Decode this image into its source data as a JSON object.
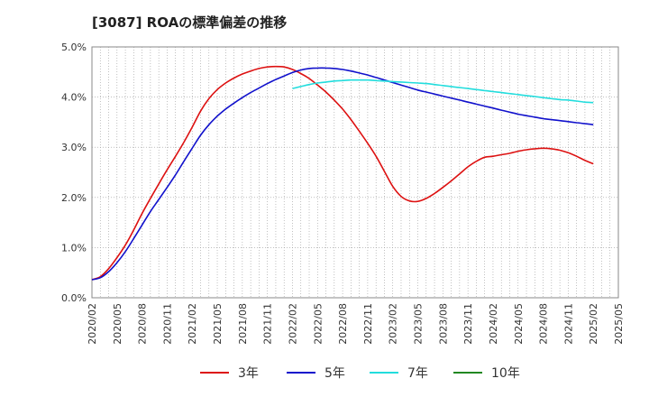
{
  "chart_data": {
    "type": "line",
    "title": "[3087]  ROAの標準偏差の推移",
    "xlabel": "",
    "ylabel": "",
    "ylim": [
      0,
      5
    ],
    "y_ticks": [
      "0.0%",
      "1.0%",
      "2.0%",
      "3.0%",
      "4.0%",
      "5.0%"
    ],
    "x_ticks": [
      "2020/02",
      "2020/05",
      "2020/08",
      "2020/11",
      "2021/02",
      "2021/05",
      "2021/08",
      "2021/11",
      "2022/02",
      "2022/05",
      "2022/08",
      "2022/11",
      "2023/02",
      "2023/05",
      "2023/08",
      "2023/11",
      "2024/02",
      "2024/05",
      "2024/08",
      "2024/11",
      "2025/02",
      "2025/05"
    ],
    "grid": true,
    "legend_position": "bottom",
    "series": [
      {
        "name": "3年",
        "color": "#dd1111",
        "points": [
          [
            "2020/02",
            0.36
          ],
          [
            "2020/03",
            0.42
          ],
          [
            "2020/04",
            0.58
          ],
          [
            "2020/05",
            0.8
          ],
          [
            "2020/06",
            1.05
          ],
          [
            "2020/07",
            1.35
          ],
          [
            "2020/08",
            1.68
          ],
          [
            "2020/09",
            1.98
          ],
          [
            "2020/10",
            2.27
          ],
          [
            "2020/11",
            2.55
          ],
          [
            "2020/12",
            2.82
          ],
          [
            "2021/01",
            3.1
          ],
          [
            "2021/02",
            3.4
          ],
          [
            "2021/03",
            3.72
          ],
          [
            "2021/04",
            3.97
          ],
          [
            "2021/05",
            4.15
          ],
          [
            "2021/06",
            4.28
          ],
          [
            "2021/07",
            4.38
          ],
          [
            "2021/08",
            4.46
          ],
          [
            "2021/09",
            4.52
          ],
          [
            "2021/10",
            4.57
          ],
          [
            "2021/11",
            4.6
          ],
          [
            "2021/12",
            4.61
          ],
          [
            "2022/01",
            4.6
          ],
          [
            "2022/02",
            4.55
          ],
          [
            "2022/03",
            4.47
          ],
          [
            "2022/04",
            4.37
          ],
          [
            "2022/05",
            4.24
          ],
          [
            "2022/06",
            4.1
          ],
          [
            "2022/07",
            3.94
          ],
          [
            "2022/08",
            3.76
          ],
          [
            "2022/09",
            3.55
          ],
          [
            "2022/10",
            3.32
          ],
          [
            "2022/11",
            3.08
          ],
          [
            "2022/12",
            2.82
          ],
          [
            "2023/01",
            2.52
          ],
          [
            "2023/02",
            2.22
          ],
          [
            "2023/03",
            2.02
          ],
          [
            "2023/04",
            1.93
          ],
          [
            "2023/05",
            1.92
          ],
          [
            "2023/06",
            1.98
          ],
          [
            "2023/07",
            2.08
          ],
          [
            "2023/08",
            2.2
          ],
          [
            "2023/09",
            2.33
          ],
          [
            "2023/10",
            2.47
          ],
          [
            "2023/11",
            2.61
          ],
          [
            "2023/12",
            2.72
          ],
          [
            "2024/01",
            2.8
          ],
          [
            "2024/02",
            2.82
          ],
          [
            "2024/03",
            2.85
          ],
          [
            "2024/04",
            2.88
          ],
          [
            "2024/05",
            2.92
          ],
          [
            "2024/06",
            2.95
          ],
          [
            "2024/07",
            2.97
          ],
          [
            "2024/08",
            2.98
          ],
          [
            "2024/09",
            2.97
          ],
          [
            "2024/10",
            2.94
          ],
          [
            "2024/11",
            2.89
          ],
          [
            "2024/12",
            2.82
          ],
          [
            "2025/01",
            2.74
          ],
          [
            "2025/02",
            2.67
          ]
        ]
      },
      {
        "name": "5年",
        "color": "#1111cc",
        "points": [
          [
            "2020/02",
            0.36
          ],
          [
            "2020/03",
            0.4
          ],
          [
            "2020/04",
            0.52
          ],
          [
            "2020/05",
            0.7
          ],
          [
            "2020/06",
            0.92
          ],
          [
            "2020/07",
            1.18
          ],
          [
            "2020/08",
            1.45
          ],
          [
            "2020/09",
            1.72
          ],
          [
            "2020/10",
            1.96
          ],
          [
            "2020/11",
            2.2
          ],
          [
            "2020/12",
            2.45
          ],
          [
            "2021/01",
            2.72
          ],
          [
            "2021/02",
            2.98
          ],
          [
            "2021/03",
            3.24
          ],
          [
            "2021/04",
            3.45
          ],
          [
            "2021/05",
            3.62
          ],
          [
            "2021/06",
            3.76
          ],
          [
            "2021/07",
            3.88
          ],
          [
            "2021/08",
            3.99
          ],
          [
            "2021/09",
            4.09
          ],
          [
            "2021/10",
            4.18
          ],
          [
            "2021/11",
            4.27
          ],
          [
            "2021/12",
            4.35
          ],
          [
            "2022/01",
            4.42
          ],
          [
            "2022/02",
            4.49
          ],
          [
            "2022/03",
            4.54
          ],
          [
            "2022/04",
            4.57
          ],
          [
            "2022/05",
            4.58
          ],
          [
            "2022/06",
            4.58
          ],
          [
            "2022/07",
            4.57
          ],
          [
            "2022/08",
            4.55
          ],
          [
            "2022/09",
            4.52
          ],
          [
            "2022/10",
            4.48
          ],
          [
            "2022/11",
            4.44
          ],
          [
            "2022/12",
            4.39
          ],
          [
            "2023/01",
            4.34
          ],
          [
            "2023/02",
            4.29
          ],
          [
            "2023/03",
            4.24
          ],
          [
            "2023/04",
            4.19
          ],
          [
            "2023/05",
            4.14
          ],
          [
            "2023/06",
            4.1
          ],
          [
            "2023/07",
            4.06
          ],
          [
            "2023/08",
            4.02
          ],
          [
            "2023/09",
            3.98
          ],
          [
            "2023/10",
            3.94
          ],
          [
            "2023/11",
            3.9
          ],
          [
            "2023/12",
            3.86
          ],
          [
            "2024/01",
            3.82
          ],
          [
            "2024/02",
            3.78
          ],
          [
            "2024/03",
            3.74
          ],
          [
            "2024/04",
            3.7
          ],
          [
            "2024/05",
            3.66
          ],
          [
            "2024/06",
            3.63
          ],
          [
            "2024/07",
            3.6
          ],
          [
            "2024/08",
            3.57
          ],
          [
            "2024/09",
            3.55
          ],
          [
            "2024/10",
            3.53
          ],
          [
            "2024/11",
            3.51
          ],
          [
            "2024/12",
            3.49
          ],
          [
            "2025/01",
            3.47
          ],
          [
            "2025/02",
            3.45
          ]
        ]
      },
      {
        "name": "7年",
        "color": "#22dddd",
        "points": [
          [
            "2022/02",
            4.17
          ],
          [
            "2022/03",
            4.21
          ],
          [
            "2022/04",
            4.25
          ],
          [
            "2022/05",
            4.28
          ],
          [
            "2022/06",
            4.3
          ],
          [
            "2022/07",
            4.32
          ],
          [
            "2022/08",
            4.33
          ],
          [
            "2022/09",
            4.34
          ],
          [
            "2022/10",
            4.34
          ],
          [
            "2022/11",
            4.34
          ],
          [
            "2022/12",
            4.33
          ],
          [
            "2023/01",
            4.32
          ],
          [
            "2023/02",
            4.31
          ],
          [
            "2023/03",
            4.3
          ],
          [
            "2023/04",
            4.29
          ],
          [
            "2023/05",
            4.28
          ],
          [
            "2023/06",
            4.27
          ],
          [
            "2023/07",
            4.25
          ],
          [
            "2023/08",
            4.23
          ],
          [
            "2023/09",
            4.21
          ],
          [
            "2023/10",
            4.19
          ],
          [
            "2023/11",
            4.17
          ],
          [
            "2023/12",
            4.15
          ],
          [
            "2024/01",
            4.13
          ],
          [
            "2024/02",
            4.11
          ],
          [
            "2024/03",
            4.09
          ],
          [
            "2024/04",
            4.07
          ],
          [
            "2024/05",
            4.05
          ],
          [
            "2024/06",
            4.03
          ],
          [
            "2024/07",
            4.01
          ],
          [
            "2024/08",
            3.99
          ],
          [
            "2024/09",
            3.97
          ],
          [
            "2024/10",
            3.95
          ],
          [
            "2024/11",
            3.94
          ],
          [
            "2024/12",
            3.92
          ],
          [
            "2025/01",
            3.9
          ],
          [
            "2025/02",
            3.89
          ]
        ]
      },
      {
        "name": "10年",
        "color": "#228822",
        "points": []
      }
    ]
  }
}
